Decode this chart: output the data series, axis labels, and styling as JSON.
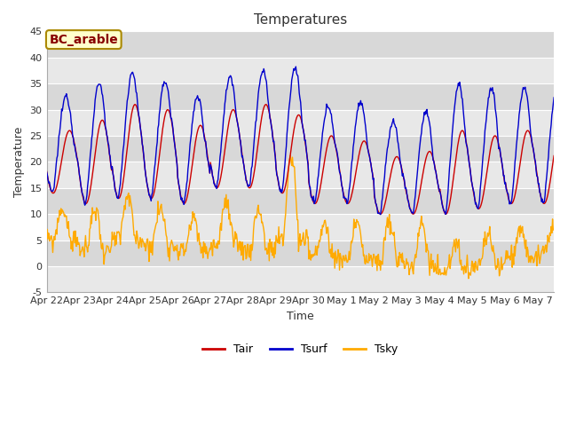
{
  "title": "Temperatures",
  "xlabel": "Time",
  "ylabel": "Temperature",
  "annotation": "BC_arable",
  "ylim": [
    -5,
    45
  ],
  "yticks": [
    -5,
    0,
    5,
    10,
    15,
    20,
    25,
    30,
    35,
    40,
    45
  ],
  "tick_labels": [
    "Apr 22",
    "Apr 23",
    "Apr 24",
    "Apr 25",
    "Apr 26",
    "Apr 27",
    "Apr 28",
    "Apr 29",
    "Apr 30",
    "May 1",
    "May 2",
    "May 3",
    "May 4",
    "May 5",
    "May 6",
    "May 7"
  ],
  "n_days": 15.5,
  "n_points": 744,
  "colors": {
    "Tair": "#cc0000",
    "Tsurf": "#0000cc",
    "Tsky": "#ffaa00",
    "fig_bg": "#ffffff",
    "plot_bg": "#e8e8e8",
    "band_bg": "#d8d8d8",
    "grid": "#ffffff",
    "annotation_bg": "#ffffcc",
    "annotation_border": "#aa8800",
    "annotation_text": "#880000"
  },
  "title_fontsize": 11,
  "axis_label_fontsize": 9,
  "tick_fontsize": 8,
  "legend_fontsize": 9,
  "line_width": 1.0
}
